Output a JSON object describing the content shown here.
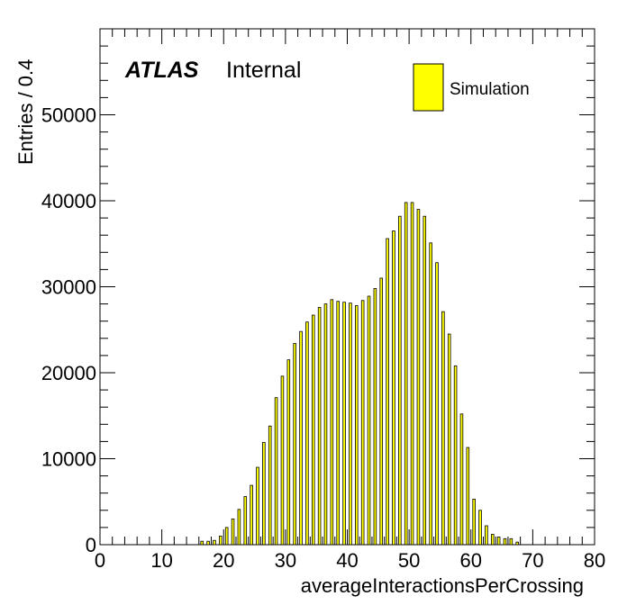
{
  "chart_data": {
    "type": "bar",
    "xlabel": "averageInteractionsPerCrossing",
    "ylabel": "Entries / 0.4",
    "xlim": [
      0,
      80
    ],
    "ylim": [
      0,
      60000
    ],
    "xticks": [
      0,
      10,
      20,
      30,
      40,
      50,
      60,
      70,
      80
    ],
    "yticks": [
      0,
      10000,
      20000,
      30000,
      40000,
      50000
    ],
    "grid": false,
    "legend_position": "top-right",
    "colors": {
      "fill": "#ffff00",
      "edge": "#000000"
    },
    "label_atlas": "ATLAS",
    "label_internal": "Internal",
    "series": [
      {
        "name": "Simulation",
        "x": [
          16.5,
          17.5,
          18.5,
          19.5,
          20.5,
          21.5,
          22.5,
          23.5,
          24.5,
          25.5,
          26.5,
          27.5,
          28.5,
          29.5,
          30.5,
          31.5,
          32.5,
          33.5,
          34.5,
          35.5,
          36.5,
          37.5,
          38.5,
          39.5,
          40.5,
          41.5,
          42.5,
          43.5,
          44.5,
          45.5,
          46.5,
          47.5,
          48.5,
          49.5,
          50.5,
          51.5,
          52.5,
          53.5,
          54.5,
          55.5,
          56.5,
          57.5,
          58.5,
          59.5,
          60.5,
          61.5,
          62.5,
          63.5,
          64.5,
          65.5,
          66.5,
          67.5
        ],
        "values": [
          400,
          400,
          500,
          1000,
          2000,
          3000,
          4100,
          5600,
          6900,
          9000,
          11900,
          13800,
          17100,
          19600,
          21500,
          23400,
          24800,
          25900,
          26700,
          27600,
          28000,
          28500,
          28300,
          28200,
          28100,
          27800,
          28400,
          28900,
          29800,
          31000,
          35600,
          36500,
          38200,
          39800,
          39800,
          39000,
          38200,
          35100,
          32800,
          27100,
          24500,
          20800,
          15200,
          11300,
          5300,
          4000,
          2200,
          1200,
          900,
          700,
          700,
          300
        ]
      }
    ]
  }
}
